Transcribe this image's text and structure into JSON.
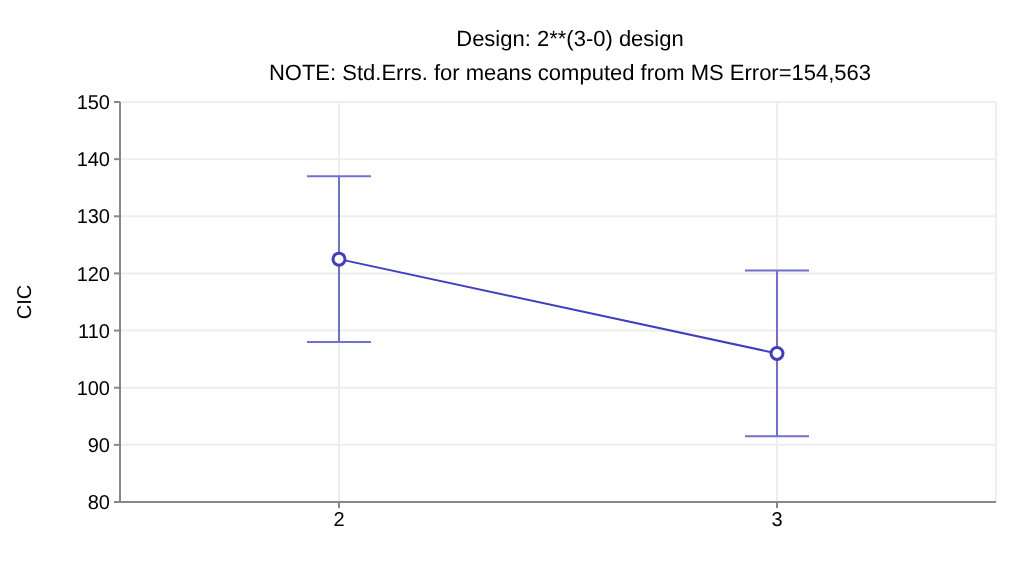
{
  "chart_data": {
    "type": "line",
    "title": "Design: 2**(3-0) design",
    "subtitle": "NOTE: Std.Errs. for means computed from MS Error=154,563",
    "ylabel": "CIC",
    "categories": [
      "2",
      "3"
    ],
    "series": [
      {
        "color": "#3f3fbf",
        "values": [
          122.5,
          106
        ],
        "errors": [
          14.5,
          14.5
        ]
      }
    ],
    "ylim": [
      80,
      150
    ],
    "yticks": [
      80,
      90,
      100,
      110,
      120,
      130,
      140,
      150
    ],
    "grid": true,
    "marker": "circle",
    "line_style": "solid"
  }
}
